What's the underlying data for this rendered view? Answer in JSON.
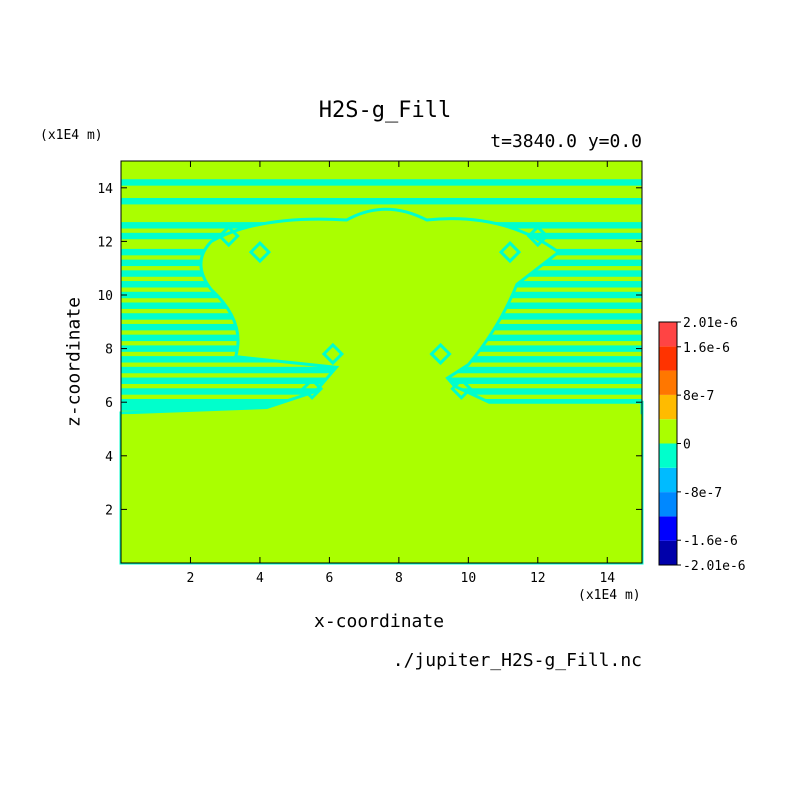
{
  "header": {
    "title": "H2S-g_Fill",
    "subtitle": "t=3840.0 y=0.0"
  },
  "footer": {
    "source": "./jupiter_H2S-g_Fill.nc"
  },
  "colors": {
    "background_field": "#aaff00",
    "negative_band": "#00ffcc",
    "colorbar": [
      "#0000aa",
      "#0000ff",
      "#0088ff",
      "#00bbff",
      "#00ffcc",
      "#aaff00",
      "#ffbb00",
      "#ff7700",
      "#ff3300",
      "#ff4444"
    ]
  },
  "chart_data": {
    "type": "heatmap",
    "title": "H2S-g_Fill",
    "subtitle": "t=3840.0 y=0.0",
    "xlabel": "x-coordinate",
    "ylabel": "z-coordinate",
    "x_unit": "(x1E4 m)",
    "y_unit": "(x1E4 m)",
    "xlim": [
      0,
      15
    ],
    "ylim": [
      0,
      15
    ],
    "x_ticks": [
      2,
      4,
      6,
      8,
      10,
      12,
      14
    ],
    "y_ticks": [
      2,
      4,
      6,
      8,
      10,
      12,
      14
    ],
    "dominant_value": 0,
    "minimum_band": "-8e-7 to 0",
    "colorbar": {
      "ticks": [
        "2.01e-6",
        "1.6e-6",
        "8e-7",
        "0",
        "-8e-7",
        "-1.6e-6",
        "-2.01e-6"
      ],
      "tick_values": [
        2.01e-06,
        1.6e-06,
        8e-07,
        0,
        -8e-07,
        -1.6e-06,
        -2.01e-06
      ],
      "range": [
        -2.01e-06,
        2.01e-06
      ]
    },
    "field_description_regions": {
      "horizontal_bands_z": [
        14.2,
        13.5,
        12.6,
        12.2,
        11.6,
        11.2,
        10.8,
        10.4,
        10.0,
        9.6,
        9.2,
        8.8,
        8.4,
        8.0,
        7.6,
        7.2,
        6.8,
        6.4,
        6.0,
        5.8
      ],
      "central_dome_x": [
        3,
        12
      ],
      "central_dome_z": [
        6,
        13
      ]
    }
  }
}
